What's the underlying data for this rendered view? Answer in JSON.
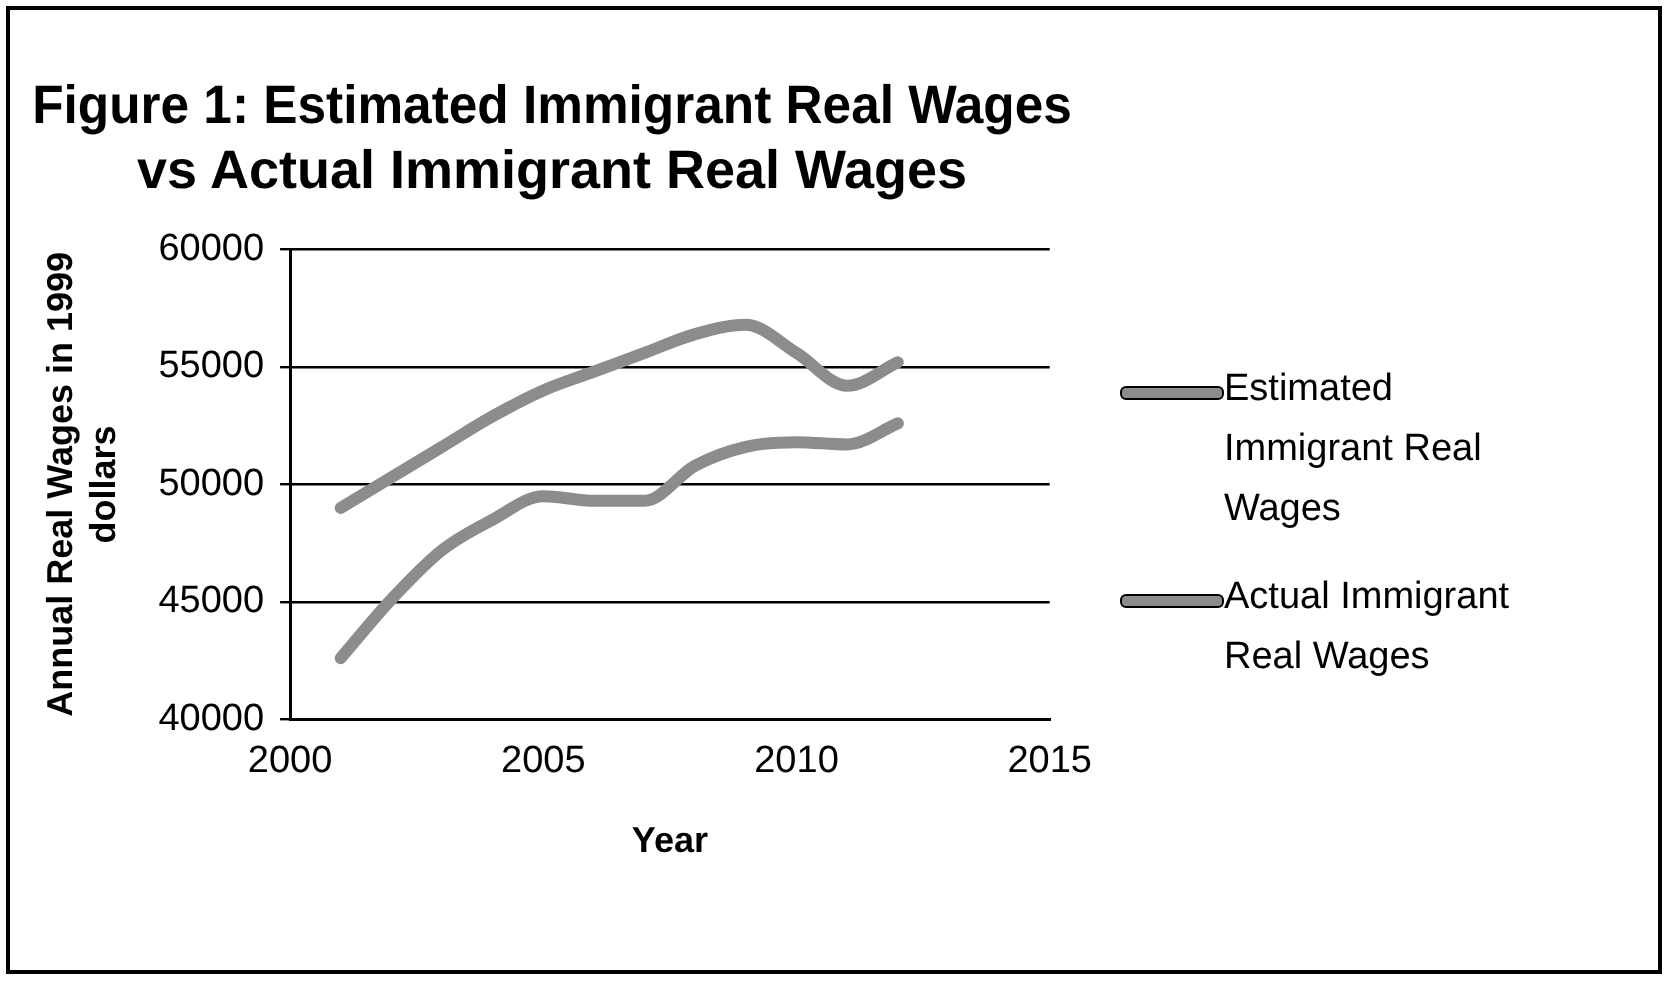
{
  "chart_data": {
    "type": "line",
    "title": "Figure 1: Estimated Immigrant Real Wages vs Actual Immigrant Real Wages",
    "xlabel": "Year",
    "ylabel": "Annual Real Wages in 1999 dollars",
    "x": [
      2001,
      2002,
      2003,
      2004,
      2005,
      2006,
      2007,
      2008,
      2009,
      2010,
      2011,
      2012
    ],
    "series": [
      {
        "name": "Estimated Immigrant Real Wages",
        "color": "#8c8c8c",
        "values": [
          49000,
          50300,
          51600,
          52900,
          54000,
          54800,
          55600,
          56400,
          56800,
          55600,
          54200,
          55200
        ]
      },
      {
        "name": "Actual Immigrant Real Wages",
        "color": "#8c8c8c",
        "values": [
          42600,
          45100,
          47200,
          48500,
          49500,
          49300,
          49300,
          50800,
          51600,
          51800,
          51700,
          52600
        ]
      }
    ],
    "xlim": [
      2000,
      2015
    ],
    "xticks": [
      2000,
      2005,
      2010,
      2015
    ],
    "ylim": [
      40000,
      60000
    ],
    "yticks": [
      40000,
      45000,
      50000,
      55000,
      60000
    ],
    "grid": "y",
    "legend": "right",
    "marker": "none",
    "line_style": "solid"
  }
}
